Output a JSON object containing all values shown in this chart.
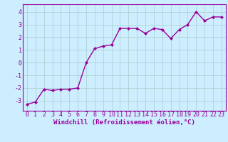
{
  "x": [
    0,
    1,
    2,
    3,
    4,
    5,
    6,
    7,
    8,
    9,
    10,
    11,
    12,
    13,
    14,
    15,
    16,
    17,
    18,
    19,
    20,
    21,
    22,
    23
  ],
  "y": [
    -3.3,
    -3.1,
    -2.1,
    -2.2,
    -2.1,
    -2.1,
    -2.0,
    0.0,
    1.1,
    1.3,
    1.4,
    2.7,
    2.7,
    2.7,
    2.3,
    2.7,
    2.6,
    1.9,
    2.6,
    3.0,
    4.0,
    3.3,
    3.6,
    3.6
  ],
  "line_color": "#990099",
  "marker": "D",
  "marker_size": 2.0,
  "bg_color": "#cceeff",
  "grid_color": "#aacccc",
  "xlabel": "Windchill (Refroidissement éolien,°C)",
  "xlabel_fontsize": 6.5,
  "xtick_labels": [
    "0",
    "1",
    "2",
    "3",
    "4",
    "5",
    "6",
    "7",
    "8",
    "9",
    "10",
    "11",
    "12",
    "13",
    "14",
    "15",
    "16",
    "17",
    "18",
    "19",
    "20",
    "21",
    "22",
    "23"
  ],
  "ytick_vals": [
    -3,
    -2,
    -1,
    0,
    1,
    2,
    3,
    4
  ],
  "ytick_labels": [
    "-3",
    "-2",
    "-1",
    "0",
    "1",
    "2",
    "3",
    "4"
  ],
  "ylim": [
    -3.8,
    4.6
  ],
  "xlim": [
    -0.5,
    23.5
  ],
  "tick_fontsize": 6.0,
  "linewidth": 1.0
}
